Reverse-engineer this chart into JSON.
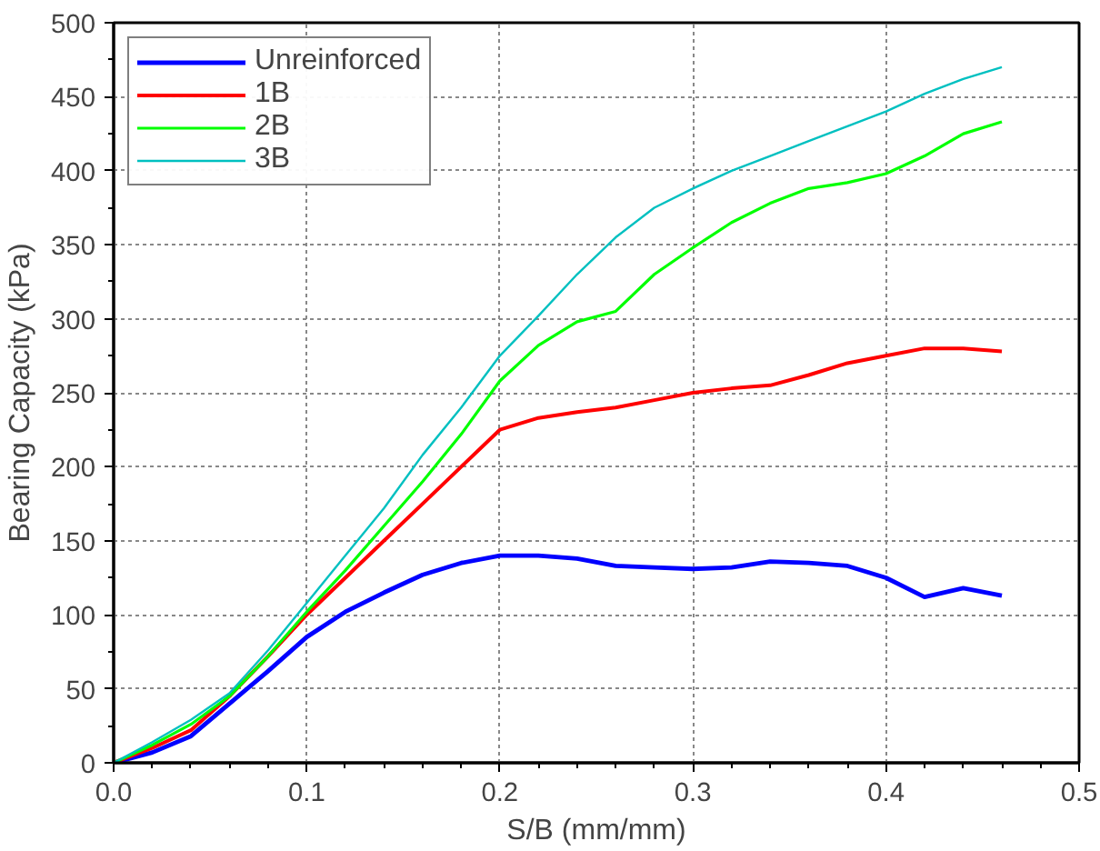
{
  "chart_data": {
    "type": "line",
    "xlabel": "S/B (mm/mm)",
    "ylabel": "Bearing Capacity (kPa)",
    "x": [
      0,
      0.02,
      0.04,
      0.06,
      0.08,
      0.1,
      0.12,
      0.14,
      0.16,
      0.18,
      0.2,
      0.22,
      0.24,
      0.26,
      0.28,
      0.3,
      0.32,
      0.34,
      0.36,
      0.38,
      0.4,
      0.42,
      0.44,
      0.46
    ],
    "series": [
      {
        "name": "Unreinforced",
        "color": "#0000ff",
        "values": [
          0,
          7,
          18,
          40,
          62,
          85,
          102,
          115,
          127,
          135,
          140,
          140,
          138,
          133,
          132,
          131,
          132,
          136,
          135,
          133,
          125,
          112,
          118,
          113
        ]
      },
      {
        "name": "1B",
        "color": "#ff0000",
        "values": [
          0,
          10,
          22,
          45,
          72,
          100,
          125,
          150,
          175,
          200,
          225,
          233,
          237,
          240,
          245,
          250,
          253,
          255,
          262,
          270,
          275,
          280,
          280,
          278
        ]
      },
      {
        "name": "2B",
        "color": "#00ff00",
        "values": [
          0,
          12,
          26,
          45,
          72,
          102,
          130,
          160,
          190,
          222,
          258,
          282,
          298,
          305,
          330,
          348,
          365,
          378,
          388,
          392,
          398,
          410,
          425,
          433
        ]
      },
      {
        "name": "3B",
        "color": "#00c0c0",
        "values": [
          0,
          14,
          29,
          47,
          76,
          108,
          140,
          172,
          208,
          240,
          275,
          302,
          330,
          355,
          375,
          388,
          400,
          410,
          420,
          430,
          440,
          452,
          462,
          470
        ]
      }
    ],
    "xlim": [
      0,
      0.5
    ],
    "ylim": [
      0,
      500
    ],
    "xticks": [
      {
        "value": 0,
        "label": "0.0"
      },
      0.1,
      0.2,
      0.3,
      0.4,
      0.5
    ],
    "yticks": [
      0,
      50,
      100,
      150,
      200,
      250,
      300,
      350,
      400,
      450,
      500
    ],
    "grid": true,
    "legend": "top left",
    "marker": "none",
    "line_style": "solid"
  }
}
